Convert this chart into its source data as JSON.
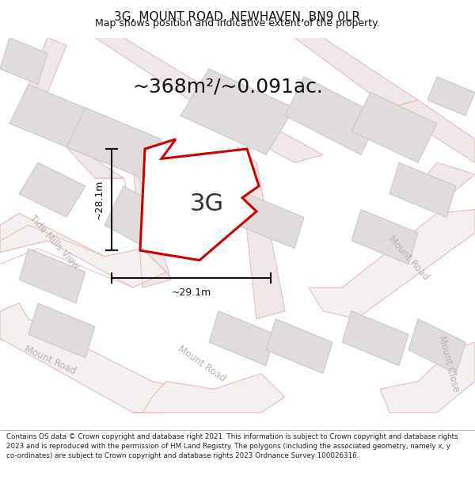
{
  "title": "3G, MOUNT ROAD, NEWHAVEN, BN9 0LR",
  "subtitle": "Map shows position and indicative extent of the property.",
  "area_label": "~368m²/~0.091ac.",
  "plot_label": "3G",
  "dim_width": "~29.1m",
  "dim_height": "~28.1m",
  "footer": "Contains OS data © Crown copyright and database right 2021. This information is subject to Crown copyright and database rights 2023 and is reproduced with the permission of HM Land Registry. The polygons (including the associated geometry, namely x, y co-ordinates) are subject to Crown copyright and database rights 2023 Ordnance Survey 100026316.",
  "bg_color": "#ffffff",
  "map_bg": "#f8f6f6",
  "road_line_color": "#e8bbbb",
  "road_fill_color": "#f0e8e8",
  "building_fill": "#e0dcdc",
  "building_edge": "#c8c4c4",
  "plot_fill": "#ffffff",
  "plot_edge": "#cc0000",
  "road_label_color": "#b8b0b0",
  "dim_color": "#111111",
  "title_color": "#111111",
  "footer_color": "#222222",
  "area_color": "#111111",
  "title_fontsize": 11,
  "subtitle_fontsize": 9,
  "area_fontsize": 18,
  "label_fontsize": 22,
  "road_lw": 1.0,
  "plot_lw": 2.0
}
